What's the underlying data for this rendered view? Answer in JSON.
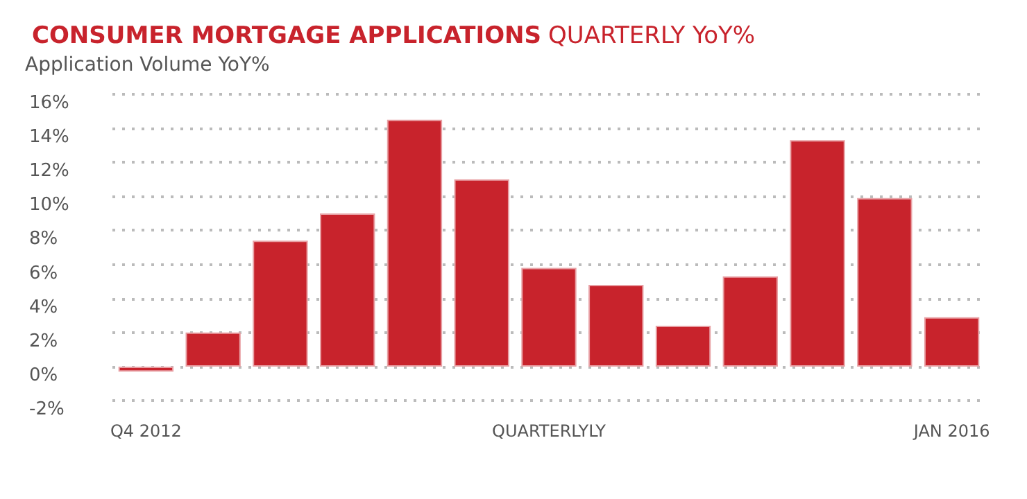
{
  "chart_data": {
    "type": "bar",
    "title": "CONSUMER MORTGAGE APPLICATIONS",
    "subtitle": "QUARTERLY YoY%",
    "ylabel": "Application Volume YoY%",
    "categories": [
      "Q4 2012",
      null,
      null,
      null,
      null,
      null,
      "QUARTERLYLY",
      null,
      null,
      null,
      null,
      null,
      "JAN 2016"
    ],
    "values": [
      -0.3,
      2.0,
      7.4,
      9.0,
      14.5,
      11.0,
      5.8,
      4.8,
      2.4,
      5.3,
      13.3,
      9.9,
      2.9
    ],
    "color": "#c8232c",
    "ylim": [
      -2,
      16
    ],
    "yticks": [
      {
        "value": -2,
        "label": "-2%"
      },
      {
        "value": 0,
        "label": "0%"
      },
      {
        "value": 2,
        "label": "2%"
      },
      {
        "value": 4,
        "label": "4%"
      },
      {
        "value": 6,
        "label": "6%"
      },
      {
        "value": 8,
        "label": "8%"
      },
      {
        "value": 10,
        "label": "10%"
      },
      {
        "value": 12,
        "label": "12%"
      },
      {
        "value": 14,
        "label": "14%"
      },
      {
        "value": 16,
        "label": "16%"
      }
    ],
    "grid": "y"
  }
}
